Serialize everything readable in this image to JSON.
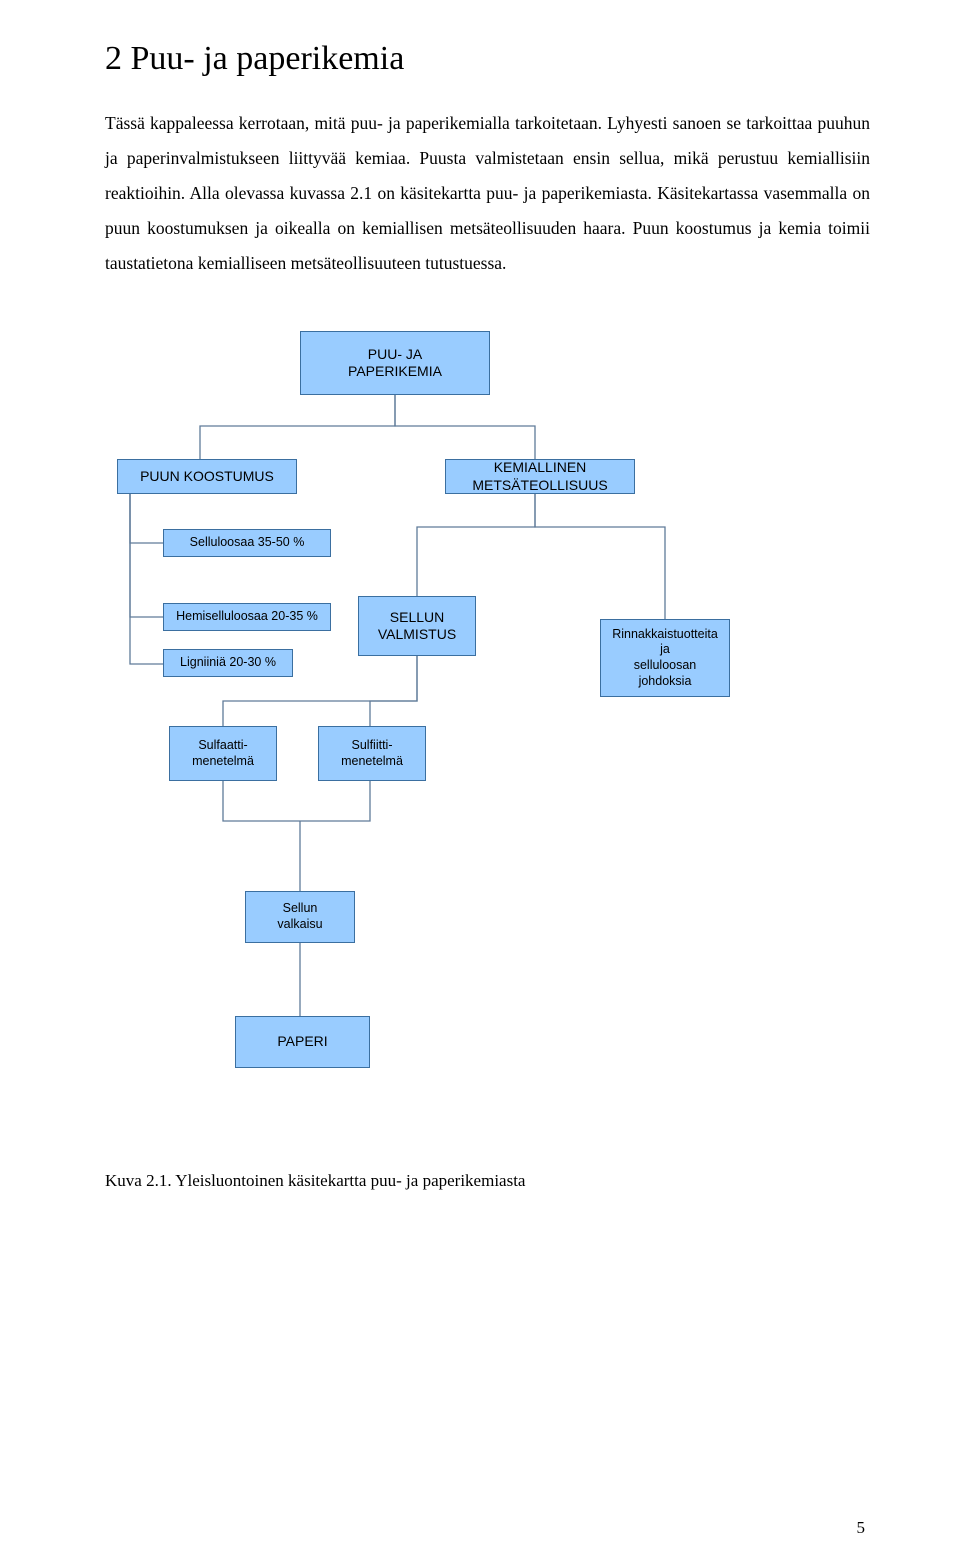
{
  "title": "2 Puu- ja paperikemia",
  "paragraph": "Tässä kappaleessa kerrotaan, mitä puu- ja paperikemialla tarkoitetaan. Lyhyesti sanoen se tarkoittaa puuhun ja paperinvalmistukseen liittyvää kemiaa. Puusta valmistetaan ensin sellua, mikä perustuu kemiallisiin reaktioihin. Alla olevassa kuvassa 2.1 on käsitekartta puu- ja paperikemiasta. Käsitekartassa vasemmalla on puun koostumuksen ja oikealla on kemiallisen metsäteollisuuden haara. Puun koostumus ja kemia toimii taustatietona kemialliseen metsäteollisuuteen tutustuessa.",
  "caption": "Kuva 2.1. Yleisluontoinen käsitekartta puu- ja paperikemiasta",
  "page_number": "5",
  "nodes": {
    "root": "PUU- JA\nPAPERIKEMIA",
    "left_main": "PUUN KOOSTUMUS",
    "right_main": "KEMIALLINEN\nMETSÄTEOLLISUUS",
    "sellu": "Selluloosaa 35-50 %",
    "hemi": "Hemiselluloosaa 20-35 %",
    "lign": "Ligniiniä 20-30 %",
    "sellun_valm": "SELLUN\nVALMISTUS",
    "rinnak": "Rinnakkaistuotteita\nja\nselluloosan\njohdoksia",
    "sulfaatti": "Sulfaatti-\nmenetelmä",
    "sulfiitti": "Sulfiitti-\nmenetelmä",
    "valkaisu": "Sellun\nvalkaisu",
    "paperi": "PAPERI"
  },
  "style": {
    "node_fill": "#99ccff",
    "node_border": "#3b6fa0",
    "connector_color": "#5f7b99"
  }
}
